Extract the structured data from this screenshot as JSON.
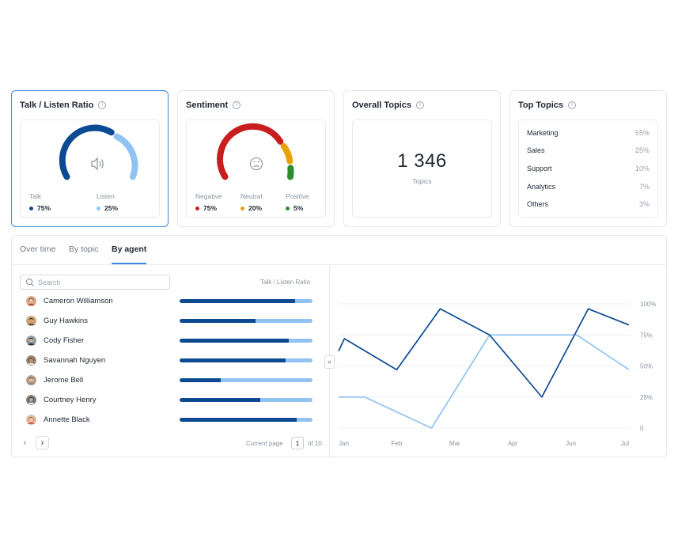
{
  "cards": {
    "talk_listen": {
      "title": "Talk / Listen Ratio",
      "talk_label": "Talk",
      "talk_value": "75%",
      "listen_label": "Listen",
      "listen_value": "25%",
      "icon": "speaker-icon"
    },
    "sentiment": {
      "title": "Sentiment",
      "negative_label": "Negative",
      "negative_value": "75%",
      "neutral_label": "Neutral",
      "neutral_value": "20%",
      "positive_label": "Positive",
      "positive_value": "5%",
      "icon": "sad-face-icon"
    },
    "overall_topics": {
      "title": "Overall Topics",
      "value": "1 346",
      "subtitle": "Topics"
    },
    "top_topics": {
      "title": "Top Topics",
      "items": [
        {
          "name": "Marketing",
          "pct": "55%"
        },
        {
          "name": "Sales",
          "pct": "25%"
        },
        {
          "name": "Support",
          "pct": "10%"
        },
        {
          "name": "Analytics",
          "pct": "7%"
        },
        {
          "name": "Others",
          "pct": "3%"
        }
      ]
    }
  },
  "colors": {
    "accent": "#3d8bd6",
    "talk": "#0c4a92",
    "listen": "#90c3f2",
    "negative": "#c81e1e",
    "neutral": "#e9a200",
    "positive": "#2e8b2e"
  },
  "tabs": [
    {
      "label": "Over time",
      "active": false
    },
    {
      "label": "By topic",
      "active": false
    },
    {
      "label": "By agent",
      "active": true
    }
  ],
  "search": {
    "placeholder": "Search"
  },
  "column_header": "Talk / Listen Ratio",
  "agents": [
    {
      "name": "Cameron Williamson",
      "talk": 0.87
    },
    {
      "name": "Guy Hawkins",
      "talk": 0.57
    },
    {
      "name": "Cody Fisher",
      "talk": 0.82
    },
    {
      "name": "Savannah Nguyen",
      "talk": 0.8
    },
    {
      "name": "Jerome Bell",
      "talk": 0.31
    },
    {
      "name": "Courtney Henry",
      "talk": 0.61
    },
    {
      "name": "Annette Black",
      "talk": 0.88
    }
  ],
  "pagination": {
    "prev": "‹",
    "next": "›",
    "label": "Current page",
    "current": "1",
    "total_text": "of 10"
  },
  "chart_data": {
    "type": "line",
    "x": [
      "Jan",
      "Feb",
      "Mar",
      "Apr",
      "Jun",
      "Jul"
    ],
    "y_ticks": [
      "100%",
      "75%",
      "50%",
      "25%",
      "0"
    ],
    "ylim": [
      0,
      100
    ],
    "series": [
      {
        "color": "#0c4a92",
        "points": [
          [
            0,
            62
          ],
          [
            0.1,
            72
          ],
          [
            1,
            47
          ],
          [
            1.75,
            96
          ],
          [
            2.6,
            75
          ],
          [
            3.5,
            25
          ],
          [
            4.3,
            96
          ],
          [
            5,
            83
          ]
        ]
      },
      {
        "color": "#90c3f2",
        "points": [
          [
            0,
            25
          ],
          [
            0.45,
            25
          ],
          [
            1.6,
            0
          ],
          [
            2.6,
            75
          ],
          [
            4.1,
            75
          ],
          [
            5,
            47
          ]
        ]
      }
    ]
  }
}
